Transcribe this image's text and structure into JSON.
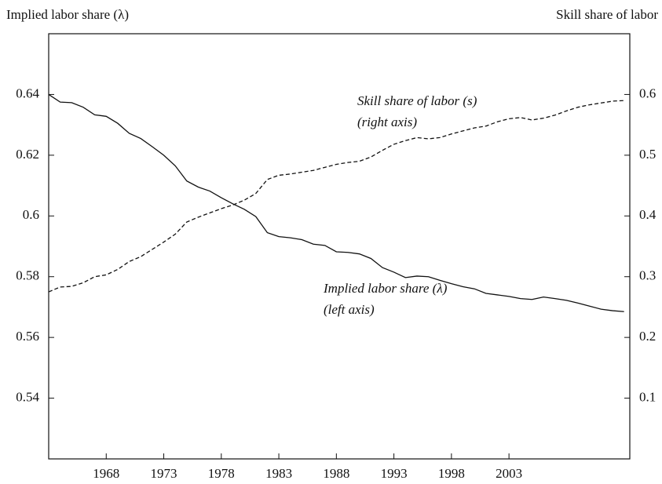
{
  "chart_data": {
    "type": "line",
    "y_label": "Implied labor share (λ)",
    "y2_label": "Skill share of labor",
    "annotations": [
      "Skill share of labor (s)",
      "(right axis)",
      "Implied labor share (λ)",
      "(left axis)"
    ],
    "x": [
      1963,
      1964,
      1965,
      1966,
      1967,
      1968,
      1969,
      1970,
      1971,
      1972,
      1973,
      1974,
      1975,
      1976,
      1977,
      1978,
      1979,
      1980,
      1981,
      1982,
      1983,
      1984,
      1985,
      1986,
      1987,
      1988,
      1989,
      1990,
      1991,
      1992,
      1993,
      1994,
      1995,
      1996,
      1997,
      1998,
      1999,
      2000,
      2001,
      2002,
      2003,
      2004,
      2005,
      2006,
      2007,
      2008,
      2009,
      2010,
      2011,
      2012,
      2013
    ],
    "xlim": [
      1963,
      2013.5
    ],
    "xticks": [
      1968,
      1973,
      1978,
      1983,
      1988,
      1993,
      1998,
      2003
    ],
    "ylim": [
      0.52,
      0.66
    ],
    "yticks": [
      0.54,
      0.56,
      0.58,
      0.6,
      0.62,
      0.64
    ],
    "y2lim": [
      0,
      0.7
    ],
    "y2ticks": [
      0.1,
      0.2,
      0.3,
      0.4,
      0.5,
      0.6
    ],
    "series": [
      {
        "name": "Implied labor share (λ)",
        "color": "#111111",
        "dash": false,
        "values": [
          0.64,
          0.6375,
          0.6373,
          0.6358,
          0.6333,
          0.6328,
          0.6305,
          0.6272,
          0.6255,
          0.6228,
          0.62,
          0.6165,
          0.6115,
          0.6095,
          0.6082,
          0.606,
          0.604,
          0.6022,
          0.5998,
          0.5945,
          0.5932,
          0.5928,
          0.5922,
          0.5907,
          0.5903,
          0.5882,
          0.588,
          0.5875,
          0.586,
          0.583,
          0.5815,
          0.5797,
          0.5802,
          0.58,
          0.5788,
          0.5777,
          0.5767,
          0.576,
          0.5745,
          0.574,
          0.5735,
          0.5728,
          0.5725,
          0.5733,
          0.5728,
          0.5722,
          0.5713,
          0.5703,
          0.5693,
          0.5688,
          0.5685
        ]
      },
      {
        "name": "Skill share of labor (s)",
        "color": "#111111",
        "dash": true,
        "axis": "y2",
        "values": [
          0.275,
          0.283,
          0.284,
          0.29,
          0.3,
          0.303,
          0.312,
          0.325,
          0.333,
          0.345,
          0.357,
          0.37,
          0.39,
          0.398,
          0.405,
          0.412,
          0.418,
          0.426,
          0.437,
          0.46,
          0.467,
          0.469,
          0.472,
          0.475,
          0.48,
          0.485,
          0.488,
          0.49,
          0.497,
          0.508,
          0.518,
          0.524,
          0.529,
          0.527,
          0.529,
          0.535,
          0.54,
          0.545,
          0.548,
          0.555,
          0.56,
          0.562,
          0.558,
          0.561,
          0.566,
          0.573,
          0.579,
          0.583,
          0.586,
          0.589,
          0.59
        ]
      }
    ]
  }
}
